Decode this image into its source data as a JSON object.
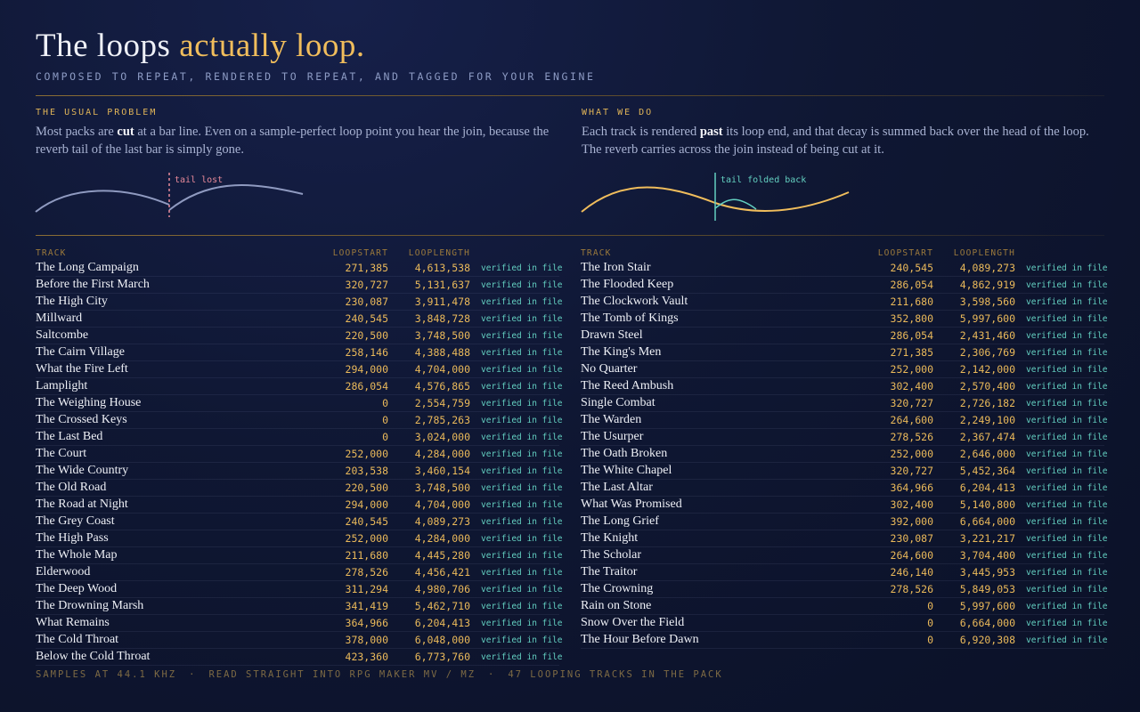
{
  "header": {
    "title_plain": "The loops ",
    "title_accent": "actually loop.",
    "subtitle": "COMPOSED TO REPEAT, RENDERED TO REPEAT, AND TAGGED FOR YOUR ENGINE"
  },
  "panels": [
    {
      "label": "THE USUAL PROBLEM",
      "text_before": "Most packs are ",
      "text_bold": "cut",
      "text_after": " at a bar line. Even on a sample-perfect loop point you hear the join, because the reverb tail of the last bar is simply gone.",
      "annotation": "tail lost"
    },
    {
      "label": "WHAT WE DO",
      "text_before": "Each track is rendered ",
      "text_bold": "past",
      "text_after": " its loop end, and that decay is summed back over the head of the loop. The reverb carries across the join instead of being cut at it.",
      "annotation": "tail folded back"
    }
  ],
  "tables": [
    {
      "columns": [
        "TRACK",
        "LOOPSTART",
        "LOOPLENGTH"
      ],
      "rows": [
        [
          "The Long Campaign",
          "271,385",
          "4,613,538",
          "verified in file"
        ],
        [
          "Before the First March",
          "320,727",
          "5,131,637",
          "verified in file"
        ],
        [
          "The High City",
          "230,087",
          "3,911,478",
          "verified in file"
        ],
        [
          "Millward",
          "240,545",
          "3,848,728",
          "verified in file"
        ],
        [
          "Saltcombe",
          "220,500",
          "3,748,500",
          "verified in file"
        ],
        [
          "The Cairn Village",
          "258,146",
          "4,388,488",
          "verified in file"
        ],
        [
          "What the Fire Left",
          "294,000",
          "4,704,000",
          "verified in file"
        ],
        [
          "Lamplight",
          "286,054",
          "4,576,865",
          "verified in file"
        ],
        [
          "The Weighing House",
          "0",
          "2,554,759",
          "verified in file"
        ],
        [
          "The Crossed Keys",
          "0",
          "2,785,263",
          "verified in file"
        ],
        [
          "The Last Bed",
          "0",
          "3,024,000",
          "verified in file"
        ],
        [
          "The Court",
          "252,000",
          "4,284,000",
          "verified in file"
        ],
        [
          "The Wide Country",
          "203,538",
          "3,460,154",
          "verified in file"
        ],
        [
          "The Old Road",
          "220,500",
          "3,748,500",
          "verified in file"
        ],
        [
          "The Road at Night",
          "294,000",
          "4,704,000",
          "verified in file"
        ],
        [
          "The Grey Coast",
          "240,545",
          "4,089,273",
          "verified in file"
        ],
        [
          "The High Pass",
          "252,000",
          "4,284,000",
          "verified in file"
        ],
        [
          "The Whole Map",
          "211,680",
          "4,445,280",
          "verified in file"
        ],
        [
          "Elderwood",
          "278,526",
          "4,456,421",
          "verified in file"
        ],
        [
          "The Deep Wood",
          "311,294",
          "4,980,706",
          "verified in file"
        ],
        [
          "The Drowning Marsh",
          "341,419",
          "5,462,710",
          "verified in file"
        ],
        [
          "What Remains",
          "364,966",
          "6,204,413",
          "verified in file"
        ],
        [
          "The Cold Throat",
          "378,000",
          "6,048,000",
          "verified in file"
        ],
        [
          "Below the Cold Throat",
          "423,360",
          "6,773,760",
          "verified in file"
        ]
      ]
    },
    {
      "columns": [
        "TRACK",
        "LOOPSTART",
        "LOOPLENGTH"
      ],
      "rows": [
        [
          "The Iron Stair",
          "240,545",
          "4,089,273",
          "verified in file"
        ],
        [
          "The Flooded Keep",
          "286,054",
          "4,862,919",
          "verified in file"
        ],
        [
          "The Clockwork Vault",
          "211,680",
          "3,598,560",
          "verified in file"
        ],
        [
          "The Tomb of Kings",
          "352,800",
          "5,997,600",
          "verified in file"
        ],
        [
          "Drawn Steel",
          "286,054",
          "2,431,460",
          "verified in file"
        ],
        [
          "The King's Men",
          "271,385",
          "2,306,769",
          "verified in file"
        ],
        [
          "No Quarter",
          "252,000",
          "2,142,000",
          "verified in file"
        ],
        [
          "The Reed Ambush",
          "302,400",
          "2,570,400",
          "verified in file"
        ],
        [
          "Single Combat",
          "320,727",
          "2,726,182",
          "verified in file"
        ],
        [
          "The Warden",
          "264,600",
          "2,249,100",
          "verified in file"
        ],
        [
          "The Usurper",
          "278,526",
          "2,367,474",
          "verified in file"
        ],
        [
          "The Oath Broken",
          "252,000",
          "2,646,000",
          "verified in file"
        ],
        [
          "The White Chapel",
          "320,727",
          "5,452,364",
          "verified in file"
        ],
        [
          "The Last Altar",
          "364,966",
          "6,204,413",
          "verified in file"
        ],
        [
          "What Was Promised",
          "302,400",
          "5,140,800",
          "verified in file"
        ],
        [
          "The Long Grief",
          "392,000",
          "6,664,000",
          "verified in file"
        ],
        [
          "The Knight",
          "230,087",
          "3,221,217",
          "verified in file"
        ],
        [
          "The Scholar",
          "264,600",
          "3,704,400",
          "verified in file"
        ],
        [
          "The Traitor",
          "246,140",
          "3,445,953",
          "verified in file"
        ],
        [
          "The Crowning",
          "278,526",
          "5,849,053",
          "verified in file"
        ],
        [
          "Rain on Stone",
          "0",
          "5,997,600",
          "verified in file"
        ],
        [
          "Snow Over the Field",
          "0",
          "6,664,000",
          "verified in file"
        ],
        [
          "The Hour Before Dawn",
          "0",
          "6,920,308",
          "verified in file"
        ]
      ]
    }
  ],
  "footer": {
    "items": [
      "SAMPLES AT 44.1 KHZ",
      "READ STRAIGHT INTO RPG MAKER MV / MZ",
      "47 LOOPING TRACKS IN THE PACK"
    ]
  }
}
